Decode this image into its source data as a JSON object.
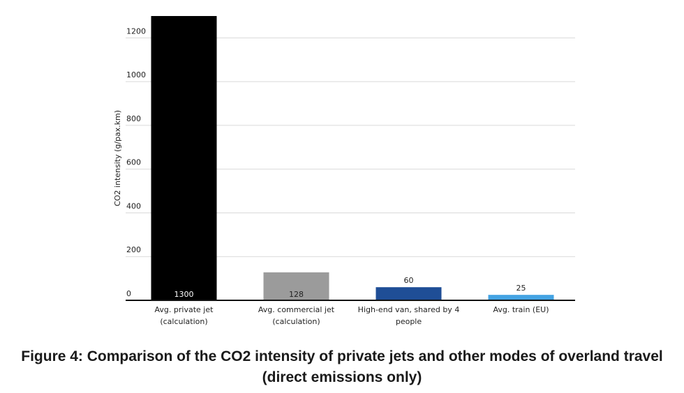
{
  "chart_data": {
    "type": "bar",
    "title": "",
    "xlabel": "",
    "ylabel": "CO2 intensity (g/pax.km)",
    "ylim": [
      0,
      1300
    ],
    "yticks": [
      0,
      200,
      400,
      600,
      800,
      1000,
      1200
    ],
    "grid": true,
    "legend": "none",
    "categories": [
      [
        "Avg. private jet",
        "(calculation)"
      ],
      [
        "Avg. commercial jet",
        "(calculation)"
      ],
      [
        "High-end van, shared by 4",
        "people"
      ],
      [
        "Avg. train (EU)"
      ]
    ],
    "values": [
      1300,
      128,
      60,
      25
    ],
    "data_labels": [
      "1300",
      "128",
      "60",
      "25"
    ],
    "colors": [
      "#000000",
      "#9b9b9b",
      "#1f4e96",
      "#44a3e3"
    ],
    "label_positions": [
      "inside-base",
      "inside-base",
      "above",
      "above"
    ]
  },
  "caption": {
    "line1": "Figure 4: Comparison of the CO2 intensity of private jets and other modes of overland travel",
    "line2": "(direct emissions only)"
  }
}
